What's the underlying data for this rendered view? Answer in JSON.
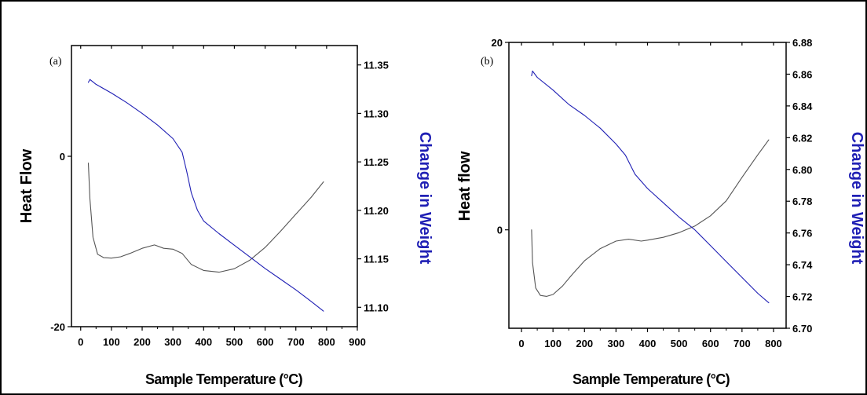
{
  "chart_data": [
    {
      "type": "line",
      "panel_label": "(a)",
      "xlabel": "Sample Temperature (°C)",
      "ylabel_left": "Heat Flow",
      "ylabel_right": "Change in Weight",
      "xlim": [
        -30,
        900
      ],
      "x_ticks": [
        0,
        100,
        200,
        300,
        400,
        500,
        600,
        700,
        800,
        900
      ],
      "ylim_left": [
        -20,
        13
      ],
      "y_ticks_left": [
        -20,
        0
      ],
      "ylim_right": [
        11.08,
        11.37
      ],
      "y_ticks_right": [
        11.1,
        11.15,
        11.2,
        11.25,
        11.3,
        11.35
      ],
      "grid": false,
      "series": [
        {
          "axis": "left",
          "color": "#555555",
          "x": [
            25,
            30,
            40,
            55,
            75,
            100,
            130,
            160,
            200,
            240,
            270,
            300,
            330,
            360,
            400,
            450,
            500,
            550,
            600,
            650,
            700,
            750,
            790
          ],
          "y": [
            -0.8,
            -5,
            -9.5,
            -11.5,
            -11.9,
            -11.95,
            -11.8,
            -11.4,
            -10.8,
            -10.4,
            -10.8,
            -10.9,
            -11.4,
            -12.7,
            -13.4,
            -13.6,
            -13.2,
            -12.2,
            -10.7,
            -8.8,
            -6.8,
            -4.8,
            -3.0
          ]
        },
        {
          "axis": "right",
          "color": "#1f1fb4",
          "x": [
            25,
            30,
            50,
            100,
            150,
            200,
            250,
            300,
            330,
            345,
            360,
            380,
            400,
            450,
            500,
            550,
            600,
            650,
            700,
            750,
            790
          ],
          "y": [
            11.332,
            11.335,
            11.33,
            11.321,
            11.311,
            11.3,
            11.288,
            11.274,
            11.26,
            11.24,
            11.218,
            11.2,
            11.189,
            11.176,
            11.164,
            11.152,
            11.14,
            11.129,
            11.118,
            11.106,
            11.096
          ]
        }
      ]
    },
    {
      "type": "line",
      "panel_label": "(b)",
      "xlabel": "Sample Temperature (°C)",
      "ylabel_left": "Heat flow",
      "ylabel_right": "Change in Weight",
      "xlim": [
        -40,
        840
      ],
      "x_ticks": [
        0,
        100,
        200,
        300,
        400,
        500,
        600,
        700,
        800
      ],
      "ylim_left": [
        -10.5,
        20
      ],
      "y_ticks_left": [
        0,
        20
      ],
      "ylim_right": [
        6.7,
        6.88
      ],
      "y_ticks_right": [
        6.7,
        6.72,
        6.74,
        6.76,
        6.78,
        6.8,
        6.82,
        6.84,
        6.86,
        6.88
      ],
      "grid": false,
      "series": [
        {
          "axis": "left",
          "color": "#555555",
          "x": [
            32,
            35,
            45,
            60,
            80,
            100,
            130,
            160,
            200,
            250,
            300,
            340,
            380,
            400,
            450,
            500,
            550,
            600,
            650,
            700,
            750,
            785
          ],
          "y": [
            0,
            -3.5,
            -6.2,
            -7.0,
            -7.1,
            -6.9,
            -6.0,
            -4.8,
            -3.3,
            -2.0,
            -1.2,
            -1.0,
            -1.2,
            -1.1,
            -0.8,
            -0.3,
            0.4,
            1.5,
            3.1,
            5.6,
            8.0,
            9.6
          ]
        },
        {
          "axis": "right",
          "color": "#1f1fb4",
          "x": [
            32,
            35,
            50,
            100,
            150,
            200,
            250,
            300,
            330,
            360,
            400,
            450,
            500,
            550,
            600,
            650,
            700,
            750,
            785
          ],
          "y": [
            6.859,
            6.862,
            6.858,
            6.85,
            6.841,
            6.834,
            6.826,
            6.816,
            6.809,
            6.797,
            6.788,
            6.779,
            6.77,
            6.762,
            6.752,
            6.742,
            6.732,
            6.722,
            6.716
          ]
        }
      ]
    }
  ]
}
